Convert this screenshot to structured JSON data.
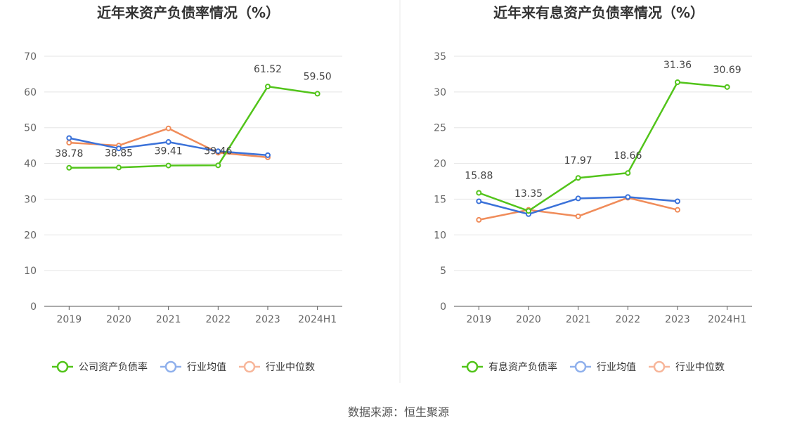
{
  "source": "数据来源：恒生聚源",
  "chart_data": [
    {
      "type": "line",
      "title": "近年来资产负债率情况（%）",
      "categories": [
        "2019",
        "2020",
        "2021",
        "2022",
        "2023",
        "2024H1"
      ],
      "ylim": [
        0,
        70
      ],
      "yticks": [
        0,
        10,
        20,
        30,
        40,
        50,
        60,
        70
      ],
      "grid": true,
      "legend_position": "bottom",
      "series": [
        {
          "name": "公司资产负债率",
          "color": "#52c41a",
          "values": [
            38.78,
            38.85,
            39.41,
            39.46,
            61.52,
            59.5
          ],
          "labels": [
            "38.78",
            "38.85",
            "39.41",
            "39.46",
            "61.52",
            "59.50"
          ]
        },
        {
          "name": "行业均值",
          "color": "#3b72d9",
          "values": [
            47.1,
            44.2,
            46.0,
            43.4,
            42.3,
            null
          ]
        },
        {
          "name": "行业中位数",
          "color": "#f08c5a",
          "values": [
            45.8,
            45.0,
            49.8,
            43.0,
            41.7,
            null
          ]
        }
      ]
    },
    {
      "type": "line",
      "title": "近年来有息资产负债率情况（%）",
      "categories": [
        "2019",
        "2020",
        "2021",
        "2022",
        "2023",
        "2024H1"
      ],
      "ylim": [
        0,
        35
      ],
      "yticks": [
        0,
        5,
        10,
        15,
        20,
        25,
        30,
        35
      ],
      "grid": true,
      "legend_position": "bottom",
      "series": [
        {
          "name": "有息资产负债率",
          "color": "#52c41a",
          "values": [
            15.88,
            13.35,
            17.97,
            18.66,
            31.36,
            30.69
          ],
          "labels": [
            "15.88",
            "13.35",
            "17.97",
            "18.66",
            "31.36",
            "30.69"
          ]
        },
        {
          "name": "行业均值",
          "color": "#3b72d9",
          "values": [
            14.7,
            12.9,
            15.1,
            15.3,
            14.7,
            null
          ]
        },
        {
          "name": "行业中位数",
          "color": "#f08c5a",
          "values": [
            12.1,
            13.5,
            12.6,
            15.2,
            13.5,
            null
          ]
        }
      ]
    }
  ]
}
